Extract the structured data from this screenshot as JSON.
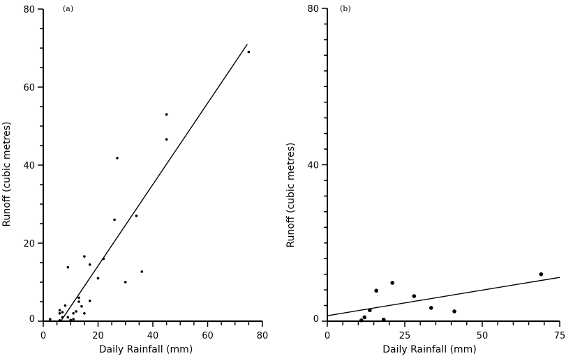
{
  "chart_data": [
    {
      "type": "scatter",
      "panel_label": "(a)",
      "xlabel": "Daily  Rainfall  (mm)",
      "ylabel": "Runoff  (cubic  metres)",
      "xlim": [
        0,
        80
      ],
      "ylim": [
        0,
        80
      ],
      "x_ticks": [
        0,
        20,
        40,
        60,
        80
      ],
      "y_ticks": [
        0,
        20,
        40,
        60,
        80
      ],
      "x_minor_step": 5,
      "y_minor_step": 5,
      "points": [
        [
          75,
          69
        ],
        [
          45,
          53
        ],
        [
          45,
          46.6
        ],
        [
          27,
          41.8
        ],
        [
          26,
          26
        ],
        [
          34,
          27
        ],
        [
          15,
          16.6
        ],
        [
          17,
          14.5
        ],
        [
          22,
          16
        ],
        [
          9,
          13.8
        ],
        [
          36,
          12.7
        ],
        [
          20,
          11
        ],
        [
          30,
          10
        ],
        [
          17,
          5.2
        ],
        [
          2.5,
          0.5
        ],
        [
          6,
          2
        ],
        [
          7,
          2.3
        ],
        [
          9,
          1
        ],
        [
          11,
          2
        ],
        [
          12,
          2.5
        ],
        [
          13,
          5
        ],
        [
          13,
          6
        ],
        [
          14,
          3.8
        ],
        [
          15,
          2
        ],
        [
          10,
          0.3
        ],
        [
          11,
          0.5
        ],
        [
          6,
          0.2
        ],
        [
          8,
          4
        ],
        [
          6,
          2.8
        ],
        [
          7,
          1
        ]
      ],
      "fit_line": [
        [
          6.4,
          0
        ],
        [
          74.5,
          71
        ]
      ]
    },
    {
      "type": "scatter",
      "panel_label": "(b)",
      "xlabel": "Daily    Rainfall  (mm)",
      "ylabel": "Runoff  (cubic  metres)",
      "xlim": [
        0,
        75
      ],
      "ylim": [
        0,
        80
      ],
      "x_ticks": [
        0,
        25,
        50,
        75
      ],
      "y_ticks": [
        0,
        40,
        80
      ],
      "x_minor_step": 5,
      "y_minor_step": 4,
      "points": [
        [
          11,
          0.2
        ],
        [
          12,
          1
        ],
        [
          13.7,
          2.8
        ],
        [
          15.8,
          7.8
        ],
        [
          18.2,
          0.4
        ],
        [
          21,
          9.8
        ],
        [
          28,
          6.4
        ],
        [
          33.5,
          3.4
        ],
        [
          41,
          2.5
        ],
        [
          69,
          12
        ]
      ],
      "fit_line": [
        [
          0,
          1.4
        ],
        [
          75,
          11.2
        ]
      ]
    }
  ]
}
